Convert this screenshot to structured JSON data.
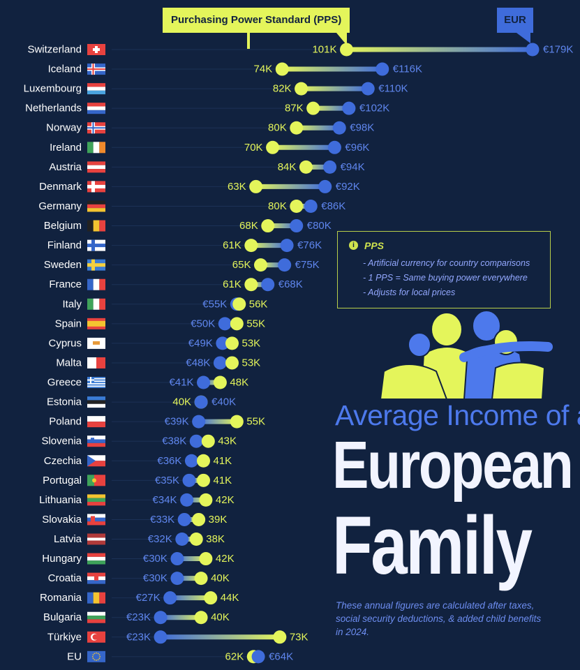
{
  "legend": {
    "pps_label": "Purchasing Power Standard (PPS)",
    "eur_label": "EUR"
  },
  "info": {
    "icon": "info-icon",
    "title": "PPS",
    "lines": [
      "Artificial currency for country comparisons",
      "1 PPS = Same buying power everywhere",
      "Adjusts for local prices"
    ]
  },
  "headline": {
    "line1": "Average Income of a",
    "line2": "European",
    "line3": "Family"
  },
  "footnote": "These annual figures are calculated after taxes, social security deductions, & added child benefits in 2024.",
  "colors": {
    "background": "#11223f",
    "pps": "#e4f55b",
    "eur": "#3f6cdb",
    "label": "#ffffff"
  },
  "chart_data": {
    "type": "dumbbell",
    "title": "Average Income of a European Family",
    "series": [
      {
        "name": "Purchasing Power Standard (PPS)",
        "key": "pps"
      },
      {
        "name": "EUR",
        "key": "eur"
      }
    ],
    "unit": "thousands",
    "countries": [
      {
        "name": "Switzerland",
        "pps": 101,
        "eur": 179,
        "pps_label": "101K",
        "eur_label": "€179K"
      },
      {
        "name": "Iceland",
        "pps": 74,
        "eur": 116,
        "pps_label": "74K",
        "eur_label": "€116K"
      },
      {
        "name": "Luxembourg",
        "pps": 82,
        "eur": 110,
        "pps_label": "82K",
        "eur_label": "€110K"
      },
      {
        "name": "Netherlands",
        "pps": 87,
        "eur": 102,
        "pps_label": "87K",
        "eur_label": "€102K"
      },
      {
        "name": "Norway",
        "pps": 80,
        "eur": 98,
        "pps_label": "80K",
        "eur_label": "€98K"
      },
      {
        "name": "Ireland",
        "pps": 70,
        "eur": 96,
        "pps_label": "70K",
        "eur_label": "€96K"
      },
      {
        "name": "Austria",
        "pps": 84,
        "eur": 94,
        "pps_label": "84K",
        "eur_label": "€94K"
      },
      {
        "name": "Denmark",
        "pps": 63,
        "eur": 92,
        "pps_label": "63K",
        "eur_label": "€92K"
      },
      {
        "name": "Germany",
        "pps": 80,
        "eur": 86,
        "pps_label": "80K",
        "eur_label": "€86K"
      },
      {
        "name": "Belgium",
        "pps": 68,
        "eur": 80,
        "pps_label": "68K",
        "eur_label": "€80K"
      },
      {
        "name": "Finland",
        "pps": 61,
        "eur": 76,
        "pps_label": "61K",
        "eur_label": "€76K"
      },
      {
        "name": "Sweden",
        "pps": 65,
        "eur": 75,
        "pps_label": "65K",
        "eur_label": "€75K"
      },
      {
        "name": "France",
        "pps": 61,
        "eur": 68,
        "pps_label": "61K",
        "eur_label": "€68K"
      },
      {
        "name": "Italy",
        "pps": 56,
        "eur": 55,
        "pps_label": "56K",
        "eur_label": "€55K"
      },
      {
        "name": "Spain",
        "pps": 55,
        "eur": 50,
        "pps_label": "55K",
        "eur_label": "€50K"
      },
      {
        "name": "Cyprus",
        "pps": 53,
        "eur": 49,
        "pps_label": "53K",
        "eur_label": "€49K"
      },
      {
        "name": "Malta",
        "pps": 53,
        "eur": 48,
        "pps_label": "53K",
        "eur_label": "€48K"
      },
      {
        "name": "Greece",
        "pps": 48,
        "eur": 41,
        "pps_label": "48K",
        "eur_label": "€41K"
      },
      {
        "name": "Estonia",
        "pps": 40,
        "eur": 40,
        "pps_label": "40K",
        "eur_label": "€40K"
      },
      {
        "name": "Poland",
        "pps": 55,
        "eur": 39,
        "pps_label": "55K",
        "eur_label": "€39K"
      },
      {
        "name": "Slovenia",
        "pps": 43,
        "eur": 38,
        "pps_label": "43K",
        "eur_label": "€38K"
      },
      {
        "name": "Czechia",
        "pps": 41,
        "eur": 36,
        "pps_label": "41K",
        "eur_label": "€36K"
      },
      {
        "name": "Portugal",
        "pps": 41,
        "eur": 35,
        "pps_label": "41K",
        "eur_label": "€35K"
      },
      {
        "name": "Lithuania",
        "pps": 42,
        "eur": 34,
        "pps_label": "42K",
        "eur_label": "€34K"
      },
      {
        "name": "Slovakia",
        "pps": 39,
        "eur": 33,
        "pps_label": "39K",
        "eur_label": "€33K"
      },
      {
        "name": "Latvia",
        "pps": 38,
        "eur": 32,
        "pps_label": "38K",
        "eur_label": "€32K"
      },
      {
        "name": "Hungary",
        "pps": 42,
        "eur": 30,
        "pps_label": "42K",
        "eur_label": "€30K"
      },
      {
        "name": "Croatia",
        "pps": 40,
        "eur": 30,
        "pps_label": "40K",
        "eur_label": "€30K"
      },
      {
        "name": "Romania",
        "pps": 44,
        "eur": 27,
        "pps_label": "44K",
        "eur_label": "€27K"
      },
      {
        "name": "Bulgaria",
        "pps": 40,
        "eur": 23,
        "pps_label": "40K",
        "eur_label": "€23K"
      },
      {
        "name": "Türkiye",
        "pps": 73,
        "eur": 23,
        "pps_label": "73K",
        "eur_label": "€23K"
      },
      {
        "name": "EU",
        "pps": 62,
        "eur": 64,
        "pps_label": "62K",
        "eur_label": "€64K"
      }
    ],
    "flags": {
      "Switzerland": "ch",
      "Iceland": "is",
      "Luxembourg": "lu",
      "Netherlands": "nl",
      "Norway": "no",
      "Ireland": "ie",
      "Austria": "at",
      "Denmark": "dk",
      "Germany": "de",
      "Belgium": "be",
      "Finland": "fi",
      "Sweden": "se",
      "France": "fr",
      "Italy": "it",
      "Spain": "es",
      "Cyprus": "cy",
      "Malta": "mt",
      "Greece": "gr",
      "Estonia": "ee",
      "Poland": "pl",
      "Slovenia": "si",
      "Czechia": "cz",
      "Portugal": "pt",
      "Lithuania": "lt",
      "Slovakia": "sk",
      "Latvia": "lv",
      "Hungary": "hu",
      "Croatia": "hr",
      "Romania": "ro",
      "Bulgaria": "bg",
      "Türkiye": "tr",
      "EU": "eu"
    }
  }
}
